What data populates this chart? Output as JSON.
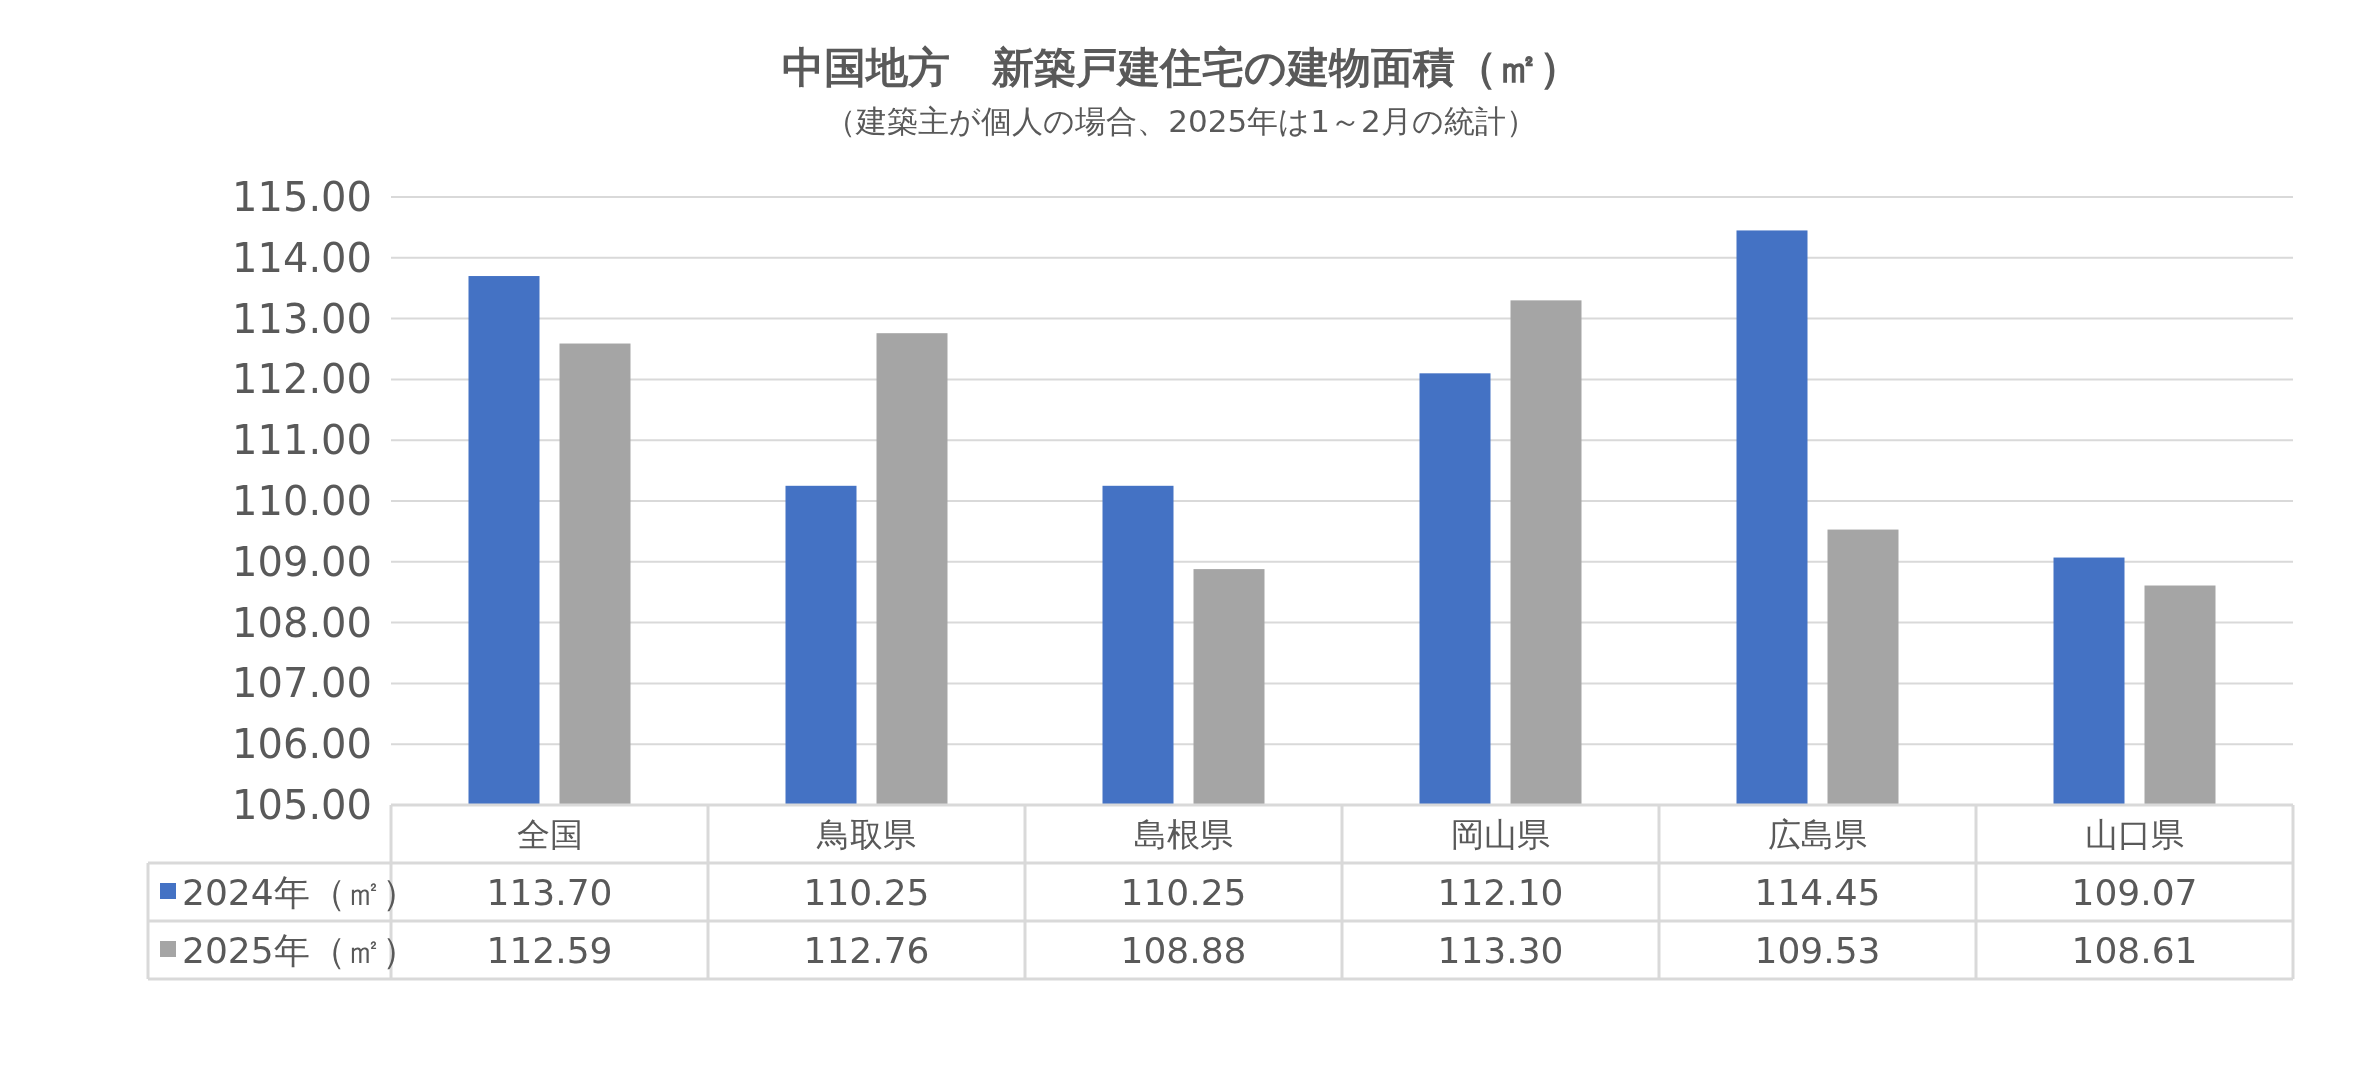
{
  "chart_data": {
    "type": "bar",
    "title": "中国地方　新築戸建住宅の建物面積（㎡）",
    "subtitle": "（建築主が個人の場合、2025年は1～2月の統計）",
    "categories": [
      "全国",
      "鳥取県",
      "島根県",
      "岡山県",
      "広島県",
      "山口県"
    ],
    "series": [
      {
        "name": "2024年（㎡）",
        "color": "#4472c4",
        "values": [
          113.7,
          110.25,
          110.25,
          112.1,
          114.45,
          109.07
        ],
        "value_labels": [
          "113.70",
          "110.25",
          "110.25",
          "112.10",
          "114.45",
          "109.07"
        ]
      },
      {
        "name": "2025年（㎡）",
        "color": "#a5a5a5",
        "values": [
          112.59,
          112.76,
          108.88,
          113.3,
          109.53,
          108.61
        ],
        "value_labels": [
          "112.59",
          "112.76",
          "108.88",
          "113.30",
          "109.53",
          "108.61"
        ]
      }
    ],
    "ylim": [
      105,
      115
    ],
    "yticks": [
      {
        "value": 105,
        "label": "105.00"
      },
      {
        "value": 106,
        "label": "106.00"
      },
      {
        "value": 107,
        "label": "107.00"
      },
      {
        "value": 108,
        "label": "108.00"
      },
      {
        "value": 109,
        "label": "109.00"
      },
      {
        "value": 110,
        "label": "110.00"
      },
      {
        "value": 111,
        "label": "111.00"
      },
      {
        "value": 112,
        "label": "112.00"
      },
      {
        "value": 113,
        "label": "113.00"
      },
      {
        "value": 114,
        "label": "114.00"
      },
      {
        "value": 115,
        "label": "115.00"
      }
    ],
    "grid": "y",
    "legend": "bottom"
  }
}
